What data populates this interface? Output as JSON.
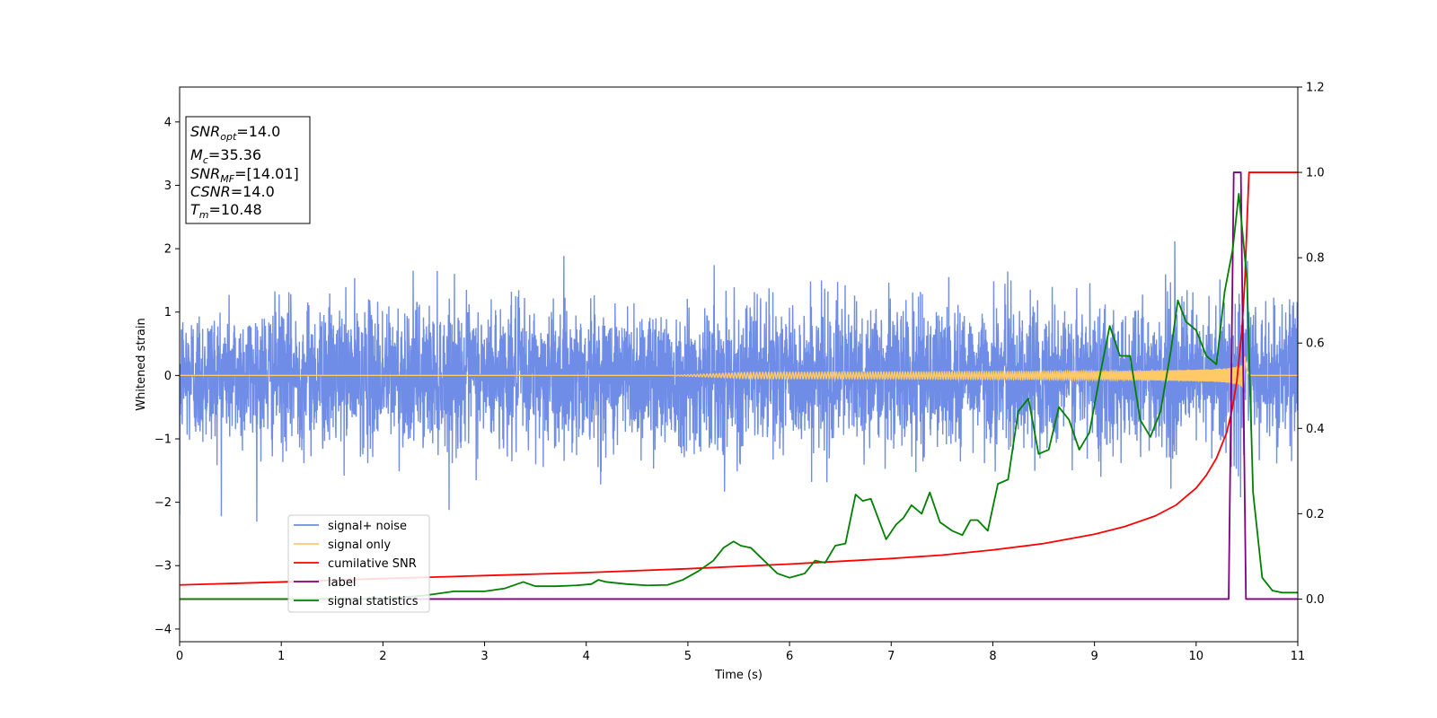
{
  "chart_data": {
    "type": "line",
    "title": "",
    "xlabel": "Time (s)",
    "ylabel": "Whitened strain",
    "y2label": "",
    "xlim": [
      0,
      11
    ],
    "ylim": [
      -4.2,
      4.55
    ],
    "y2lim": [
      -0.1,
      1.2
    ],
    "xticks": [
      0,
      1,
      2,
      3,
      4,
      5,
      6,
      7,
      8,
      9,
      10,
      11
    ],
    "yticks": [
      -4,
      -3,
      -2,
      -1,
      0,
      1,
      2,
      3,
      4
    ],
    "y2ticks": [
      0.0,
      0.2,
      0.4,
      0.6,
      0.8,
      1.0,
      1.2
    ],
    "grid": false,
    "legend_position": "lower-left",
    "noise_envelope": {
      "description_values": "approximate amplitude of noisy trace",
      "typical_min": -1.3,
      "typical_max": 1.3,
      "extreme_min": -2.55,
      "extreme_max": 2.3
    },
    "signal_chirp": {
      "merger_time": 10.48,
      "peak_amplitude": 0.75,
      "start_time": 4.8
    },
    "series": [
      {
        "name": "signal+ noise",
        "color": "#6f8de6",
        "axis": "left",
        "kind": "noise-with-chirp"
      },
      {
        "name": "signal only",
        "color": "#ffc966",
        "axis": "left",
        "kind": "chirp"
      },
      {
        "name": "cumilative SNR",
        "color": "#ff0000",
        "axis": "right",
        "x": [
          0,
          1,
          2,
          3,
          4,
          5,
          6,
          7,
          7.5,
          8,
          8.5,
          9,
          9.3,
          9.6,
          9.8,
          10.0,
          10.1,
          10.2,
          10.3,
          10.35,
          10.4,
          10.45,
          10.48,
          10.5,
          10.52,
          11
        ],
        "y": [
          0.033,
          0.04,
          0.048,
          0.055,
          0.062,
          0.071,
          0.082,
          0.095,
          0.103,
          0.115,
          0.13,
          0.152,
          0.17,
          0.195,
          0.22,
          0.26,
          0.29,
          0.33,
          0.39,
          0.44,
          0.51,
          0.63,
          0.75,
          0.88,
          1.0,
          1.0
        ]
      },
      {
        "name": "label",
        "color": "#800080",
        "axis": "right",
        "x": [
          0,
          10.32,
          10.37,
          10.44,
          10.49,
          11
        ],
        "y": [
          0,
          0,
          1,
          1,
          0,
          0
        ]
      },
      {
        "name": "signal statistics",
        "color": "#008000",
        "axis": "right",
        "x": [
          0,
          1,
          2,
          2.4,
          2.7,
          3.0,
          3.2,
          3.38,
          3.5,
          3.7,
          3.9,
          4.05,
          4.12,
          4.2,
          4.4,
          4.6,
          4.8,
          4.95,
          5.1,
          5.25,
          5.35,
          5.45,
          5.52,
          5.62,
          5.75,
          5.88,
          6.0,
          6.15,
          6.25,
          6.35,
          6.45,
          6.55,
          6.65,
          6.72,
          6.8,
          6.95,
          7.05,
          7.12,
          7.2,
          7.3,
          7.38,
          7.48,
          7.6,
          7.7,
          7.78,
          7.85,
          7.95,
          8.05,
          8.15,
          8.25,
          8.35,
          8.45,
          8.55,
          8.65,
          8.75,
          8.85,
          8.95,
          9.05,
          9.15,
          9.25,
          9.35,
          9.45,
          9.55,
          9.65,
          9.75,
          9.82,
          9.9,
          10.0,
          10.1,
          10.2,
          10.28,
          10.36,
          10.42,
          10.5,
          10.56,
          10.65,
          10.75,
          10.85,
          11
        ],
        "y": [
          0.0,
          0.0,
          0.001,
          0.008,
          0.018,
          0.018,
          0.025,
          0.04,
          0.03,
          0.03,
          0.032,
          0.035,
          0.045,
          0.04,
          0.035,
          0.032,
          0.033,
          0.045,
          0.065,
          0.09,
          0.12,
          0.135,
          0.125,
          0.12,
          0.09,
          0.06,
          0.05,
          0.06,
          0.09,
          0.085,
          0.125,
          0.13,
          0.245,
          0.23,
          0.235,
          0.14,
          0.175,
          0.19,
          0.22,
          0.2,
          0.25,
          0.18,
          0.16,
          0.15,
          0.185,
          0.185,
          0.16,
          0.27,
          0.28,
          0.44,
          0.47,
          0.34,
          0.35,
          0.45,
          0.42,
          0.35,
          0.39,
          0.52,
          0.64,
          0.57,
          0.57,
          0.42,
          0.38,
          0.44,
          0.58,
          0.7,
          0.65,
          0.63,
          0.57,
          0.55,
          0.72,
          0.82,
          0.95,
          0.75,
          0.25,
          0.05,
          0.02,
          0.015,
          0.015
        ]
      }
    ],
    "annotations": [
      {
        "main": "SNR",
        "sub": "opt",
        "rest": "=14.0"
      },
      {
        "main": "M",
        "sub": "c",
        "rest": "=35.36"
      },
      {
        "main": "SNR",
        "sub": "MF",
        "rest": "=[14.01]"
      },
      {
        "main": "CSNR",
        "sub": "",
        "rest": "=14.0"
      },
      {
        "main": "T",
        "sub": "m",
        "rest": "=10.48"
      }
    ]
  }
}
